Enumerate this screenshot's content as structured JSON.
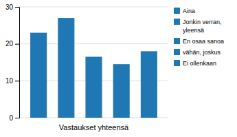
{
  "chart_data": {
    "type": "bar",
    "xlabel": "Vastaukset yhteensä",
    "categories": [
      "Aina",
      "Jonkin verran,\nyleensä",
      "En osaa sanoa",
      "vähän, joskus",
      "Ei ollenkaan"
    ],
    "values": [
      23,
      27,
      16.5,
      14.5,
      18
    ],
    "ylim": [
      0,
      30
    ],
    "yticks": [
      0,
      10,
      20,
      30
    ],
    "grid": true,
    "legend": "right",
    "tick_labels": "y"
  }
}
